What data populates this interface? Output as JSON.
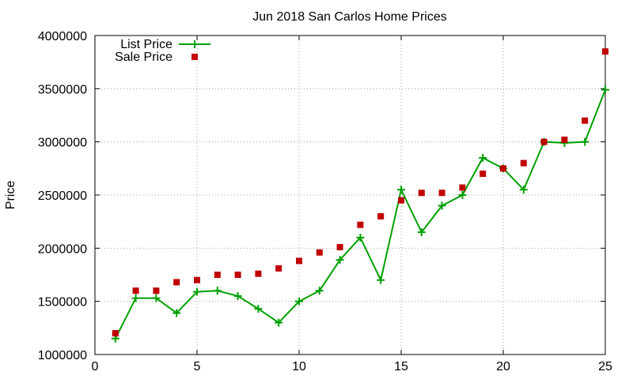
{
  "chart_data": {
    "type": "line",
    "title": "Jun 2018 San Carlos Home Prices",
    "xlabel": "",
    "ylabel": "Price",
    "xlim": [
      0,
      25
    ],
    "ylim": [
      1000000,
      4000000
    ],
    "xticks": [
      0,
      5,
      10,
      15,
      20,
      25
    ],
    "yticks": [
      1000000,
      1500000,
      2000000,
      2500000,
      3000000,
      3500000,
      4000000
    ],
    "grid": true,
    "legend_position": "top-left",
    "series": [
      {
        "name": "List Price",
        "style": "line-with-plus",
        "color": "#00a000",
        "points": [
          [
            1,
            1150000
          ],
          [
            2,
            1530000
          ],
          [
            3,
            1530000
          ],
          [
            4,
            1390000
          ],
          [
            5,
            1590000
          ],
          [
            6,
            1600000
          ],
          [
            7,
            1550000
          ],
          [
            8,
            1430000
          ],
          [
            9,
            1300000
          ],
          [
            10,
            1500000
          ],
          [
            11,
            1600000
          ],
          [
            12,
            1890000
          ],
          [
            13,
            2100000
          ],
          [
            14,
            1700000
          ],
          [
            15,
            2550000
          ],
          [
            16,
            2150000
          ],
          [
            17,
            2400000
          ],
          [
            18,
            2500000
          ],
          [
            19,
            2850000
          ],
          [
            20,
            2750000
          ],
          [
            21,
            2550000
          ],
          [
            22,
            3000000
          ],
          [
            23,
            2990000
          ],
          [
            24,
            3000000
          ],
          [
            25,
            3490000
          ]
        ]
      },
      {
        "name": "Sale Price",
        "style": "square-markers",
        "color": "#c00000",
        "points": [
          [
            1,
            1200000
          ],
          [
            2,
            1600000
          ],
          [
            3,
            1600000
          ],
          [
            4,
            1680000
          ],
          [
            5,
            1700000
          ],
          [
            6,
            1750000
          ],
          [
            7,
            1750000
          ],
          [
            8,
            1760000
          ],
          [
            9,
            1810000
          ],
          [
            10,
            1880000
          ],
          [
            11,
            1960000
          ],
          [
            12,
            2010000
          ],
          [
            13,
            2220000
          ],
          [
            14,
            2300000
          ],
          [
            15,
            2450000
          ],
          [
            16,
            2520000
          ],
          [
            17,
            2520000
          ],
          [
            18,
            2570000
          ],
          [
            19,
            2700000
          ],
          [
            20,
            2750000
          ],
          [
            21,
            2800000
          ],
          [
            22,
            3000000
          ],
          [
            23,
            3020000
          ],
          [
            24,
            3200000
          ],
          [
            25,
            3850000
          ]
        ]
      }
    ]
  }
}
